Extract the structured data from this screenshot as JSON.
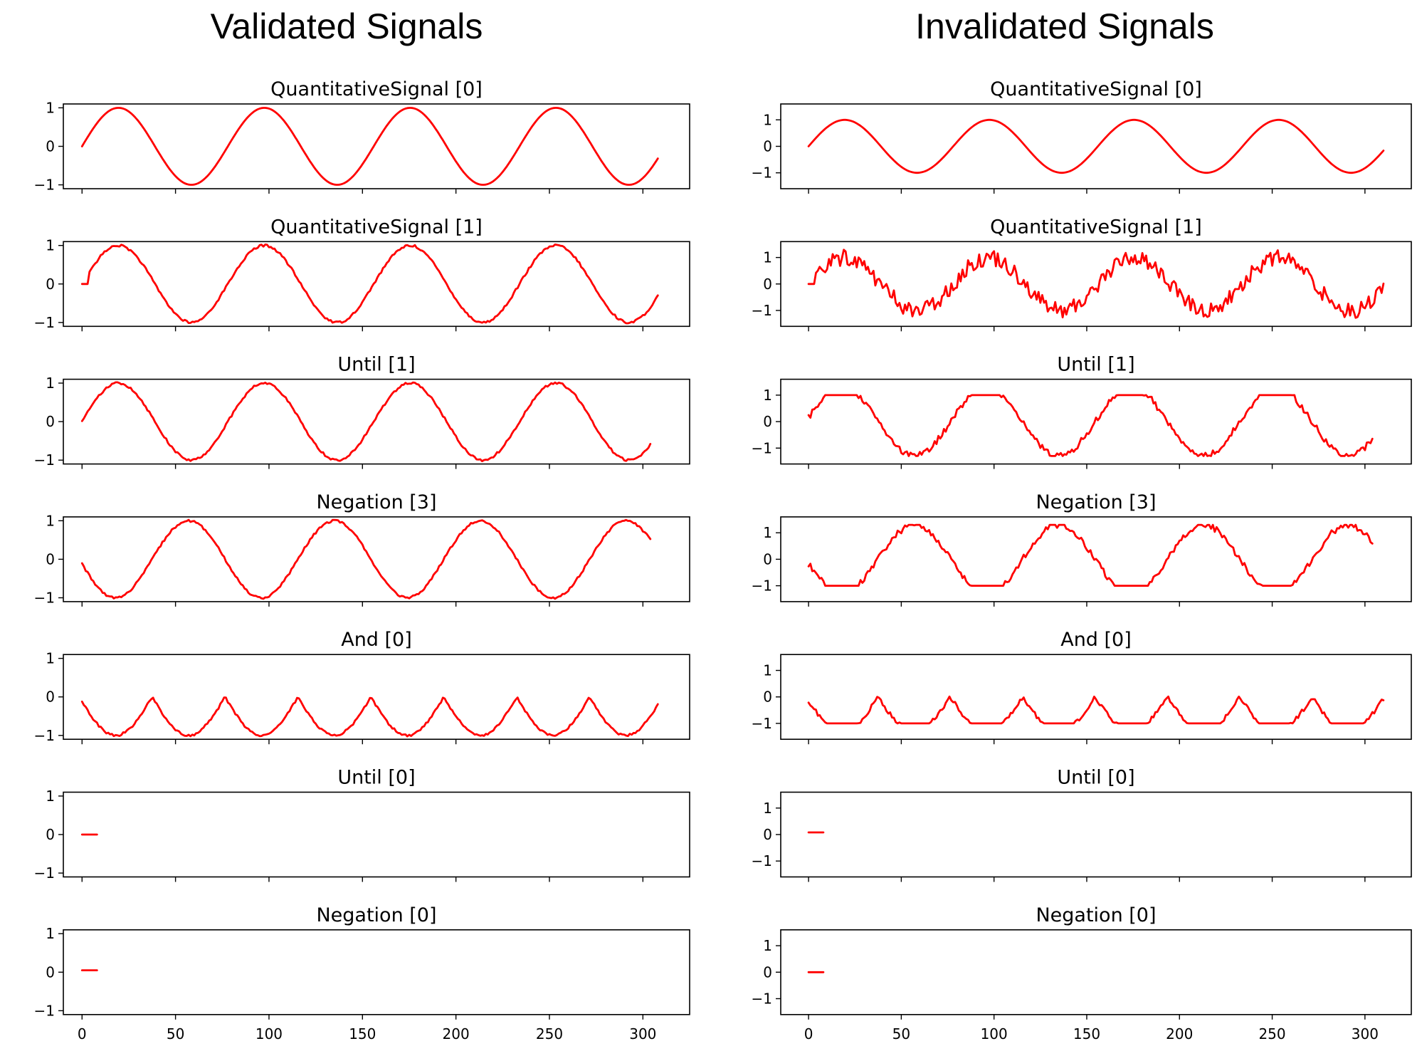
{
  "columns": [
    {
      "title": "Validated Signals"
    },
    {
      "title": "Invalidated Signals"
    }
  ],
  "colors": {
    "line": "#ff0000",
    "axes": "#000000",
    "background": "#ffffff"
  },
  "chart_data": [
    {
      "column": "Validated Signals",
      "panels": [
        {
          "title": "QuantitativeSignal [0]",
          "type": "line",
          "xlim": [
            -10,
            325
          ],
          "ylim": [
            -1.1,
            1.1
          ],
          "yticks": [
            -1,
            0,
            1
          ],
          "x_start": 0,
          "x_end": 308,
          "shape": "sine",
          "period": 78,
          "phase": 0,
          "amplitude": 1.0,
          "noise": 0
        },
        {
          "title": "QuantitativeSignal [1]",
          "type": "line",
          "xlim": [
            -10,
            325
          ],
          "ylim": [
            -1.1,
            1.1
          ],
          "yticks": [
            -1,
            0,
            1
          ],
          "x_start": 0,
          "x_end": 308,
          "shape": "sine",
          "period": 78,
          "phase": 4,
          "amplitude": 1.0,
          "noise": 0.03,
          "flat_start": 4
        },
        {
          "title": "Until [1]",
          "type": "line",
          "xlim": [
            -10,
            325
          ],
          "ylim": [
            -1.1,
            1.1
          ],
          "yticks": [
            -1,
            0,
            1
          ],
          "x_start": 0,
          "x_end": 304,
          "shape": "sine",
          "period": 78,
          "phase": 1.5,
          "amplitude": 1.0,
          "noise": 0.03
        },
        {
          "title": "Negation [3]",
          "type": "line",
          "xlim": [
            -10,
            325
          ],
          "ylim": [
            -1.1,
            1.1
          ],
          "yticks": [
            -1,
            0,
            1
          ],
          "x_start": 0,
          "x_end": 304,
          "shape": "neg-sine",
          "period": 78,
          "phase": 1.5,
          "amplitude": 1.0,
          "noise": 0.03
        },
        {
          "title": "And [0]",
          "type": "line",
          "xlim": [
            -10,
            325
          ],
          "ylim": [
            -1.1,
            1.1
          ],
          "yticks": [
            -1,
            0,
            1
          ],
          "x_start": 0,
          "x_end": 308,
          "shape": "neg-abs-sine",
          "period": 78,
          "phase": 1.5,
          "amplitude": 1.0,
          "noise": 0.03
        },
        {
          "title": "Until [0]",
          "type": "line",
          "xlim": [
            -10,
            325
          ],
          "ylim": [
            -1.1,
            1.1
          ],
          "yticks": [
            -1,
            0,
            1
          ],
          "x_start": 0,
          "x_end": 8,
          "shape": "const",
          "level": 0.0
        },
        {
          "title": "Negation [0]",
          "type": "line",
          "xlim": [
            -10,
            325
          ],
          "ylim": [
            -1.1,
            1.1
          ],
          "yticks": [
            -1,
            0,
            1
          ],
          "x_start": 0,
          "x_end": 8,
          "shape": "const",
          "level": 0.05,
          "xticks": [
            0,
            50,
            100,
            150,
            200,
            250,
            300
          ]
        }
      ]
    },
    {
      "column": "Invalidated Signals",
      "panels": [
        {
          "title": "QuantitativeSignal [0]",
          "type": "line",
          "xlim": [
            -15,
            325
          ],
          "ylim": [
            -1.6,
            1.6
          ],
          "yticks": [
            -1,
            0,
            1
          ],
          "x_start": 0,
          "x_end": 310,
          "shape": "sine",
          "period": 78,
          "phase": 0,
          "amplitude": 1.0,
          "noise": 0
        },
        {
          "title": "QuantitativeSignal [1]",
          "type": "line",
          "xlim": [
            -15,
            325
          ],
          "ylim": [
            -1.6,
            1.6
          ],
          "yticks": [
            -1,
            0,
            1
          ],
          "x_start": 0,
          "x_end": 310,
          "shape": "sine",
          "period": 78,
          "phase": 4,
          "amplitude": 1.0,
          "noise": 0.3,
          "flat_start": 4
        },
        {
          "title": "Until [1]",
          "type": "line",
          "xlim": [
            -15,
            325
          ],
          "ylim": [
            -1.6,
            1.6
          ],
          "yticks": [
            -1,
            0,
            1
          ],
          "x_start": 0,
          "x_end": 304,
          "shape": "clip-sine",
          "period": 78,
          "phase": 1.5,
          "amplitude": 1.3,
          "noise": 0.12
        },
        {
          "title": "Negation [3]",
          "type": "line",
          "xlim": [
            -15,
            325
          ],
          "ylim": [
            -1.6,
            1.6
          ],
          "yticks": [
            -1,
            0,
            1
          ],
          "x_start": 0,
          "x_end": 304,
          "shape": "neg-clip-sine",
          "period": 78,
          "phase": 1.5,
          "amplitude": 1.3,
          "noise": 0.12
        },
        {
          "title": "And [0]",
          "type": "line",
          "xlim": [
            -15,
            325
          ],
          "ylim": [
            -1.6,
            1.6
          ],
          "yticks": [
            -1,
            0,
            1
          ],
          "x_start": 0,
          "x_end": 310,
          "shape": "neg-abs-clip",
          "period": 78,
          "phase": 1.5,
          "amplitude": 1.3,
          "noise": 0.08
        },
        {
          "title": "Until [0]",
          "type": "line",
          "xlim": [
            -15,
            325
          ],
          "ylim": [
            -1.6,
            1.6
          ],
          "yticks": [
            -1,
            0,
            1
          ],
          "x_start": 0,
          "x_end": 8,
          "shape": "const",
          "level": 0.08
        },
        {
          "title": "Negation [0]",
          "type": "line",
          "xlim": [
            -15,
            325
          ],
          "ylim": [
            -1.6,
            1.6
          ],
          "yticks": [
            -1,
            0,
            1
          ],
          "x_start": 0,
          "x_end": 8,
          "shape": "const",
          "level": 0.0,
          "xticks": [
            0,
            50,
            100,
            150,
            200,
            250,
            300
          ]
        }
      ]
    }
  ]
}
